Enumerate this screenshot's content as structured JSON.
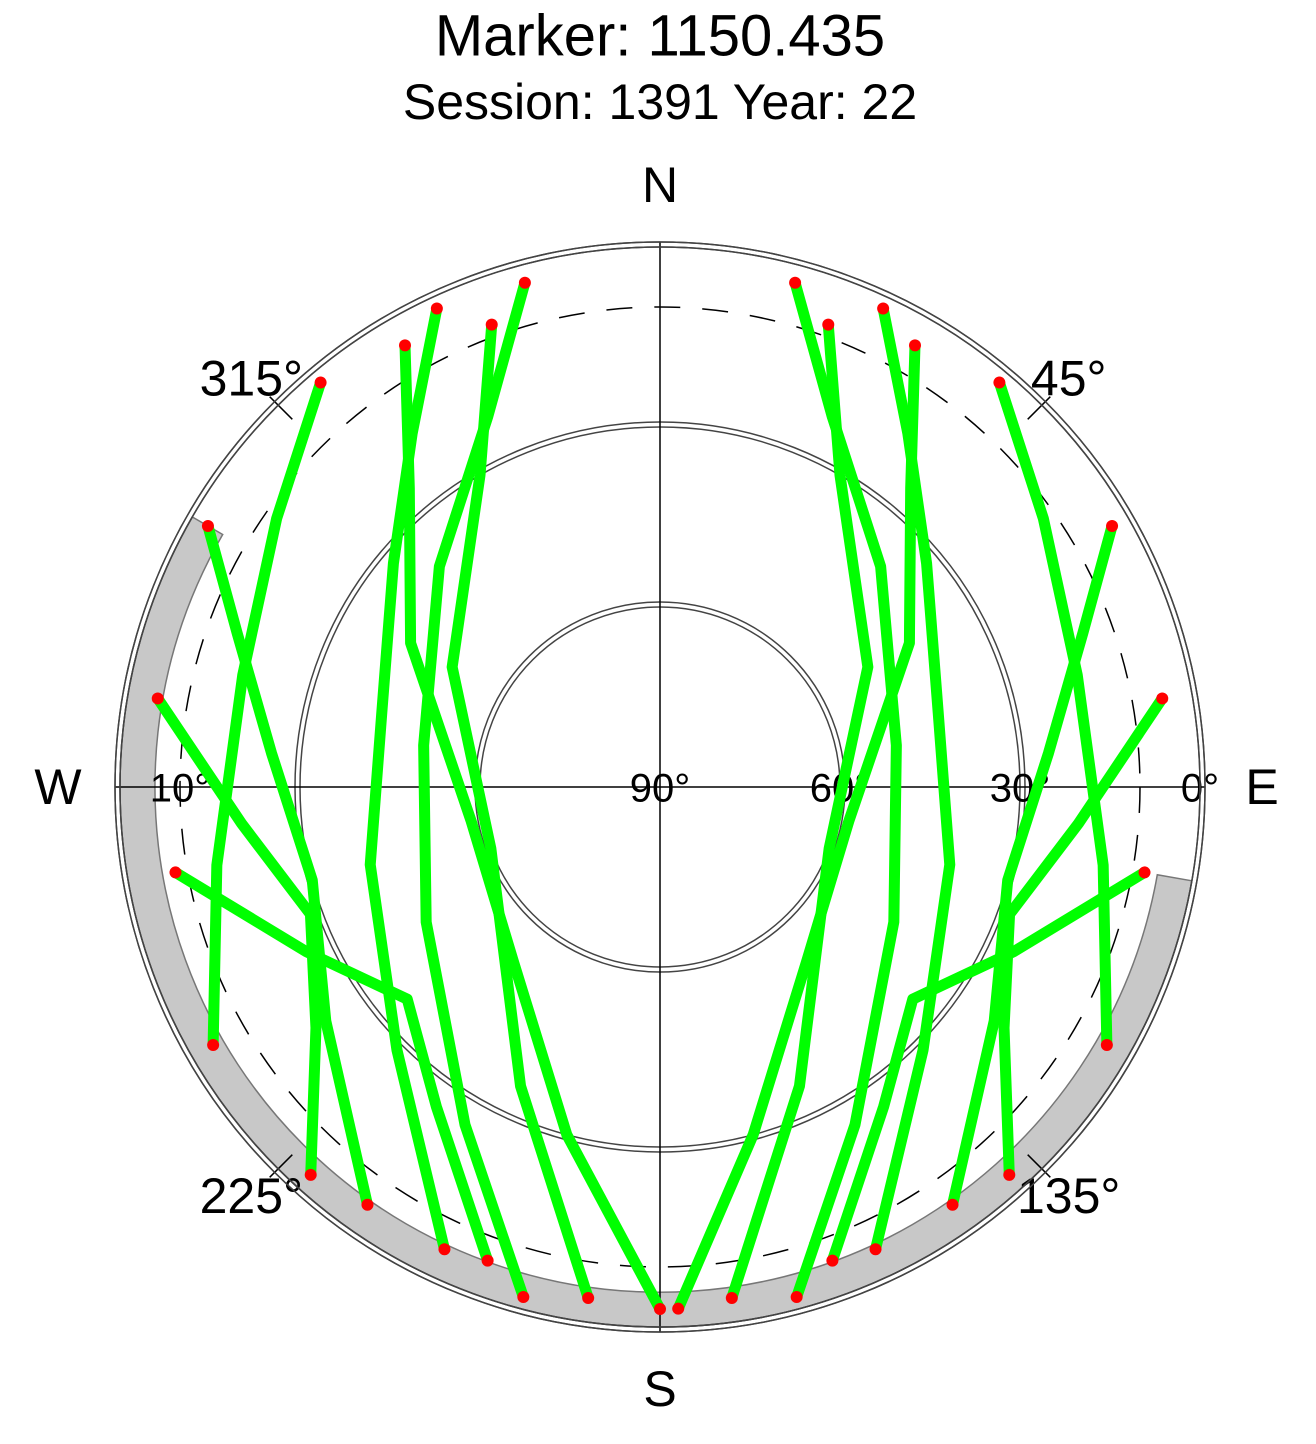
{
  "chart_data": {
    "type": "skyplot",
    "title": "Marker: 1150.435",
    "subtitle": "Session: 1391 Year: 22",
    "directions": [
      {
        "value": 0,
        "label": "N"
      },
      {
        "value": 90,
        "label": "E"
      },
      {
        "value": 180,
        "label": "S"
      },
      {
        "value": 270,
        "label": "W"
      }
    ],
    "azimuth_ticks": [
      {
        "value": 45,
        "label": "45°"
      },
      {
        "value": 135,
        "label": "135°"
      },
      {
        "value": 225,
        "label": "225°"
      },
      {
        "value": 315,
        "label": "315°"
      }
    ],
    "elevation_lim": [
      0,
      90
    ],
    "elevation_ticks": [
      {
        "value": 90,
        "label": "90°"
      },
      {
        "value": 60,
        "label": "60°"
      },
      {
        "value": 30,
        "label": "30°"
      },
      {
        "value": 0,
        "label": "0°"
      }
    ],
    "mask_tick": {
      "value": 10,
      "label": "10°"
    },
    "track_color": "#00ff00",
    "low_color": "#ff0000",
    "tracks": [
      {
        "az": [
          335,
          325,
          310,
          285,
          255,
          225,
          205
        ],
        "el": [
          2,
          18,
          32,
          42,
          40,
          28,
          5
        ]
      },
      {
        "az": [
          345,
          335,
          315,
          280,
          240,
          210,
          195
        ],
        "el": [
          3,
          22,
          38,
          50,
          45,
          25,
          2
        ]
      },
      {
        "az": [
          25,
          35,
          50,
          75,
          105,
          135,
          155
        ],
        "el": [
          2,
          18,
          32,
          42,
          40,
          28,
          5
        ]
      },
      {
        "az": [
          15,
          25,
          45,
          80,
          120,
          150,
          165
        ],
        "el": [
          3,
          22,
          38,
          50,
          45,
          25,
          2
        ]
      },
      {
        "az": [
          300,
          290,
          275,
          255,
          235,
          215
        ],
        "el": [
          3,
          15,
          25,
          30,
          22,
          5
        ]
      },
      {
        "az": [
          60,
          70,
          85,
          105,
          125,
          145
        ],
        "el": [
          3,
          15,
          25,
          30,
          22,
          5
        ]
      },
      {
        "az": [
          330,
          320,
          300,
          260,
          220,
          195,
          180
        ],
        "el": [
          5,
          25,
          42,
          58,
          52,
          30,
          3
        ]
      },
      {
        "az": [
          30,
          40,
          60,
          100,
          140,
          165,
          178
        ],
        "el": [
          5,
          25,
          42,
          58,
          52,
          30,
          3
        ]
      },
      {
        "az": [
          280,
          265,
          250,
          235,
          222
        ],
        "el": [
          5,
          20,
          28,
          20,
          3
        ]
      },
      {
        "az": [
          80,
          95,
          110,
          125,
          138
        ],
        "el": [
          5,
          20,
          28,
          20,
          3
        ]
      },
      {
        "az": [
          340,
          330,
          300,
          250,
          205,
          188
        ],
        "el": [
          8,
          30,
          50,
          60,
          35,
          4
        ]
      },
      {
        "az": [
          20,
          30,
          60,
          110,
          155,
          172
        ],
        "el": [
          8,
          30,
          50,
          60,
          35,
          4
        ]
      },
      {
        "az": [
          260,
          245,
          230,
          215,
          200
        ],
        "el": [
          8,
          25,
          35,
          25,
          6
        ]
      },
      {
        "az": [
          100,
          115,
          130,
          145,
          160
        ],
        "el": [
          8,
          25,
          35,
          25,
          6
        ]
      },
      {
        "az": [
          320,
          305,
          285,
          260,
          240
        ],
        "el": [
          2,
          12,
          18,
          15,
          4
        ]
      },
      {
        "az": [
          40,
          55,
          75,
          100,
          120
        ],
        "el": [
          2,
          12,
          18,
          15,
          4
        ]
      }
    ]
  }
}
